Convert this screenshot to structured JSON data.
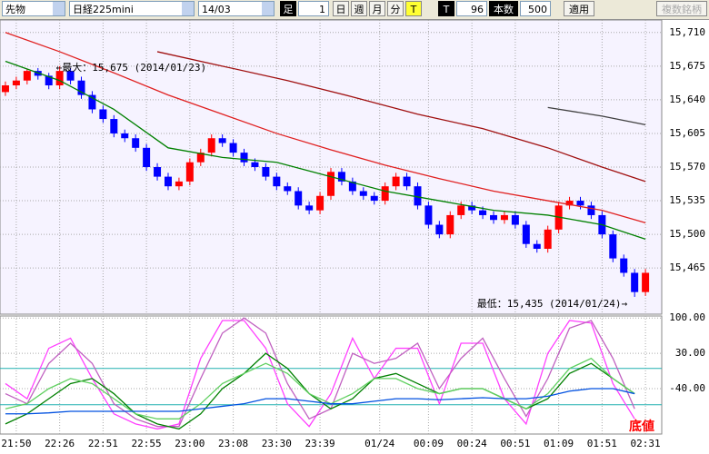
{
  "toolbar": {
    "market": "先物",
    "symbol": "日経225mini",
    "contract": "14/03",
    "bar_label": "足",
    "bar_size": "1",
    "daily": "日",
    "weekly": "週",
    "monthly": "月",
    "minute": "分",
    "tick": "T",
    "tick2": "T",
    "tick_count": "96",
    "count_label": "本数",
    "count": "500",
    "apply": "適用",
    "multi": "複数銘柄"
  },
  "chart_data": [
    {
      "type": "candlestick",
      "up_color": "#ff0000",
      "down_color": "#0000ff",
      "grid": true,
      "annotations": [
        "←最大：15,675 (2014/01/23)",
        "最低：15,435 (2014/01/24)→"
      ],
      "xlim": [
        -0.5,
        60.5
      ],
      "xticks": [
        {
          "value": 1,
          "label": "21:50"
        },
        {
          "value": 5,
          "label": "22:26"
        },
        {
          "value": 9,
          "label": "22:51"
        },
        {
          "value": 13,
          "label": "22:55"
        },
        {
          "value": 17,
          "label": "23:00"
        },
        {
          "value": 21,
          "label": "23:08"
        },
        {
          "value": 25,
          "label": "23:30"
        },
        {
          "value": 29,
          "label": "23:39"
        },
        {
          "value": 34.5,
          "label": "01/24"
        },
        {
          "value": 39,
          "label": "00:09"
        },
        {
          "value": 43,
          "label": "00:24"
        },
        {
          "value": 47,
          "label": "00:51"
        },
        {
          "value": 51,
          "label": "01:09"
        },
        {
          "value": 55,
          "label": "01:51"
        },
        {
          "value": 59,
          "label": "02:31"
        }
      ],
      "ylim": [
        15417,
        15723
      ],
      "yticks": [
        {
          "value": 15710,
          "label": "15,710"
        },
        {
          "value": 15675,
          "label": "15,675"
        },
        {
          "value": 15640,
          "label": "15,640"
        },
        {
          "value": 15605,
          "label": "15,605"
        },
        {
          "value": 15570,
          "label": "15,570"
        },
        {
          "value": 15535,
          "label": "15,535"
        },
        {
          "value": 15500,
          "label": "15,500"
        },
        {
          "value": 15465,
          "label": "15,465"
        }
      ],
      "x": [
        0,
        1,
        2,
        3,
        4,
        5,
        6,
        7,
        8,
        9,
        10,
        11,
        12,
        13,
        14,
        15,
        16,
        17,
        18,
        19,
        20,
        21,
        22,
        23,
        24,
        25,
        26,
        27,
        28,
        29,
        30,
        31,
        32,
        33,
        34,
        35,
        36,
        37,
        38,
        39,
        40,
        41,
        42,
        43,
        44,
        45,
        46,
        47,
        48,
        49,
        50,
        51,
        52,
        53,
        54,
        55,
        56,
        57,
        58,
        59
      ],
      "open": [
        15648,
        15655,
        15660,
        15670,
        15665,
        15655,
        15670,
        15660,
        15645,
        15630,
        15620,
        15605,
        15600,
        15590,
        15570,
        15560,
        15550,
        15555,
        15575,
        15585,
        15600,
        15595,
        15585,
        15575,
        15570,
        15560,
        15550,
        15545,
        15530,
        15525,
        15540,
        15565,
        15555,
        15545,
        15540,
        15535,
        15550,
        15560,
        15550,
        15530,
        15510,
        15500,
        15520,
        15530,
        15525,
        15520,
        15515,
        15520,
        15510,
        15490,
        15485,
        15505,
        15530,
        15535,
        15530,
        15520,
        15500,
        15475,
        15460,
        15440
      ],
      "high": [
        15659,
        15664,
        15672,
        15673,
        15668,
        15675,
        15673,
        15664,
        15649,
        15634,
        15624,
        15609,
        15604,
        15594,
        15574,
        15564,
        15559,
        15579,
        15589,
        15604,
        15604,
        15599,
        15589,
        15579,
        15574,
        15564,
        15554,
        15549,
        15534,
        15544,
        15569,
        15569,
        15559,
        15549,
        15544,
        15554,
        15564,
        15564,
        15554,
        15534,
        15514,
        15524,
        15534,
        15534,
        15529,
        15524,
        15524,
        15524,
        15514,
        15494,
        15509,
        15534,
        15539,
        15539,
        15534,
        15524,
        15504,
        15479,
        15464,
        15464
      ],
      "low": [
        15644,
        15651,
        15656,
        15661,
        15651,
        15651,
        15656,
        15641,
        15626,
        15616,
        15601,
        15596,
        15586,
        15566,
        15556,
        15546,
        15546,
        15551,
        15571,
        15581,
        15591,
        15581,
        15571,
        15566,
        15556,
        15546,
        15541,
        15526,
        15521,
        15521,
        15536,
        15551,
        15541,
        15536,
        15531,
        15531,
        15546,
        15546,
        15526,
        15506,
        15496,
        15496,
        15516,
        15521,
        15516,
        15511,
        15511,
        15506,
        15486,
        15481,
        15481,
        15501,
        15526,
        15526,
        15516,
        15496,
        15471,
        15456,
        15435,
        15436
      ],
      "close": [
        15655,
        15660,
        15670,
        15665,
        15655,
        15670,
        15660,
        15645,
        15630,
        15620,
        15605,
        15600,
        15590,
        15570,
        15560,
        15550,
        15555,
        15575,
        15585,
        15600,
        15595,
        15585,
        15575,
        15570,
        15560,
        15550,
        15545,
        15530,
        15525,
        15540,
        15565,
        15555,
        15545,
        15540,
        15535,
        15550,
        15560,
        15550,
        15530,
        15510,
        15500,
        15520,
        15530,
        15525,
        15520,
        15515,
        15520,
        15510,
        15490,
        15485,
        15505,
        15530,
        15535,
        15530,
        15520,
        15500,
        15475,
        15460,
        15440,
        15460
      ],
      "series": [
        {
          "color": "#008000",
          "x": [
            0,
            5,
            10,
            15,
            20,
            25,
            30,
            35,
            40,
            45,
            50,
            55,
            59
          ],
          "values": [
            15680,
            15660,
            15630,
            15590,
            15580,
            15575,
            15560,
            15545,
            15535,
            15525,
            15520,
            15510,
            15495
          ]
        },
        {
          "color": "#e02020",
          "x": [
            0,
            5,
            10,
            15,
            20,
            25,
            30,
            35,
            40,
            45,
            50,
            55,
            59
          ],
          "values": [
            15710,
            15690,
            15668,
            15645,
            15625,
            15605,
            15588,
            15572,
            15558,
            15545,
            15535,
            15525,
            15512
          ]
        },
        {
          "color": "#a01010",
          "x": [
            14,
            20,
            26,
            32,
            38,
            44,
            50,
            55,
            59
          ],
          "values": [
            15690,
            15675,
            15660,
            15643,
            15625,
            15610,
            15590,
            15570,
            15555
          ]
        },
        {
          "color": "#404040",
          "x": [
            50,
            55,
            59
          ],
          "values": [
            15632,
            15623,
            15614
          ]
        }
      ]
    },
    {
      "type": "line",
      "xlim": [
        -0.5,
        60.5
      ],
      "ylim": [
        -130,
        104
      ],
      "yticks": [
        {
          "value": 100,
          "label": "100.00"
        },
        {
          "value": 30,
          "label": "30.00"
        },
        {
          "value": -40,
          "label": "-40.00"
        }
      ],
      "reference_lines": [
        {
          "value": 0,
          "color": "#20b0b0"
        },
        {
          "value": -72,
          "color": "#20b0b0"
        }
      ],
      "series": [
        {
          "color": "#ff40ff",
          "x": [
            0,
            2,
            4,
            6,
            8,
            10,
            12,
            14,
            16,
            18,
            20,
            22,
            24,
            26,
            28,
            30,
            32,
            34,
            36,
            38,
            40,
            42,
            44,
            46,
            48,
            50,
            52,
            54,
            56,
            58
          ],
          "values": [
            -30,
            -60,
            40,
            60,
            -20,
            -90,
            -110,
            -120,
            -110,
            20,
            95,
            95,
            40,
            -70,
            -115,
            -50,
            60,
            -20,
            40,
            40,
            -70,
            50,
            50,
            -60,
            -110,
            30,
            95,
            90,
            -30,
            -100
          ]
        },
        {
          "color": "#c060c0",
          "x": [
            0,
            2,
            4,
            6,
            8,
            10,
            12,
            14,
            16,
            18,
            20,
            22,
            24,
            26,
            28,
            30,
            32,
            34,
            36,
            38,
            40,
            42,
            44,
            46,
            48,
            50,
            52,
            54,
            56,
            58
          ],
          "values": [
            -50,
            -70,
            10,
            50,
            10,
            -70,
            -100,
            -115,
            -115,
            -20,
            70,
            100,
            70,
            -30,
            -100,
            -80,
            30,
            10,
            20,
            50,
            -40,
            20,
            60,
            -20,
            -95,
            -20,
            80,
            95,
            20,
            -80
          ]
        },
        {
          "color": "#008000",
          "x": [
            0,
            2,
            4,
            6,
            8,
            10,
            12,
            14,
            16,
            18,
            20,
            22,
            24,
            26,
            28,
            30,
            32,
            34,
            36,
            38,
            40,
            42,
            44,
            46,
            48,
            50,
            52,
            54,
            56,
            58
          ],
          "values": [
            -110,
            -90,
            -60,
            -30,
            -20,
            -50,
            -90,
            -110,
            -120,
            -90,
            -40,
            -10,
            30,
            0,
            -50,
            -80,
            -60,
            -20,
            -10,
            -30,
            -50,
            -40,
            -40,
            -60,
            -80,
            -60,
            -10,
            10,
            -20,
            -50
          ]
        },
        {
          "color": "#60d060",
          "x": [
            0,
            2,
            4,
            6,
            8,
            10,
            12,
            14,
            16,
            18,
            20,
            22,
            24,
            26,
            28,
            30,
            32,
            34,
            36,
            38,
            40,
            42,
            44,
            46,
            48,
            50,
            52,
            54,
            56,
            58
          ],
          "values": [
            -80,
            -70,
            -40,
            -20,
            -30,
            -60,
            -90,
            -100,
            -100,
            -70,
            -30,
            -10,
            10,
            -10,
            -50,
            -70,
            -50,
            -20,
            -20,
            -40,
            -50,
            -40,
            -40,
            -60,
            -80,
            -50,
            0,
            20,
            -20,
            -50
          ]
        },
        {
          "color": "#0050e0",
          "x": [
            0,
            2,
            4,
            6,
            8,
            10,
            12,
            14,
            16,
            18,
            20,
            22,
            24,
            26,
            28,
            30,
            32,
            34,
            36,
            38,
            40,
            42,
            44,
            46,
            48,
            50,
            52,
            54,
            56,
            58
          ],
          "values": [
            -90,
            -90,
            -88,
            -85,
            -85,
            -85,
            -85,
            -85,
            -85,
            -80,
            -75,
            -70,
            -60,
            -60,
            -65,
            -70,
            -70,
            -65,
            -60,
            -60,
            -62,
            -60,
            -58,
            -60,
            -60,
            -55,
            -45,
            -40,
            -40,
            -50
          ]
        }
      ]
    }
  ],
  "bottom_label": "底値"
}
